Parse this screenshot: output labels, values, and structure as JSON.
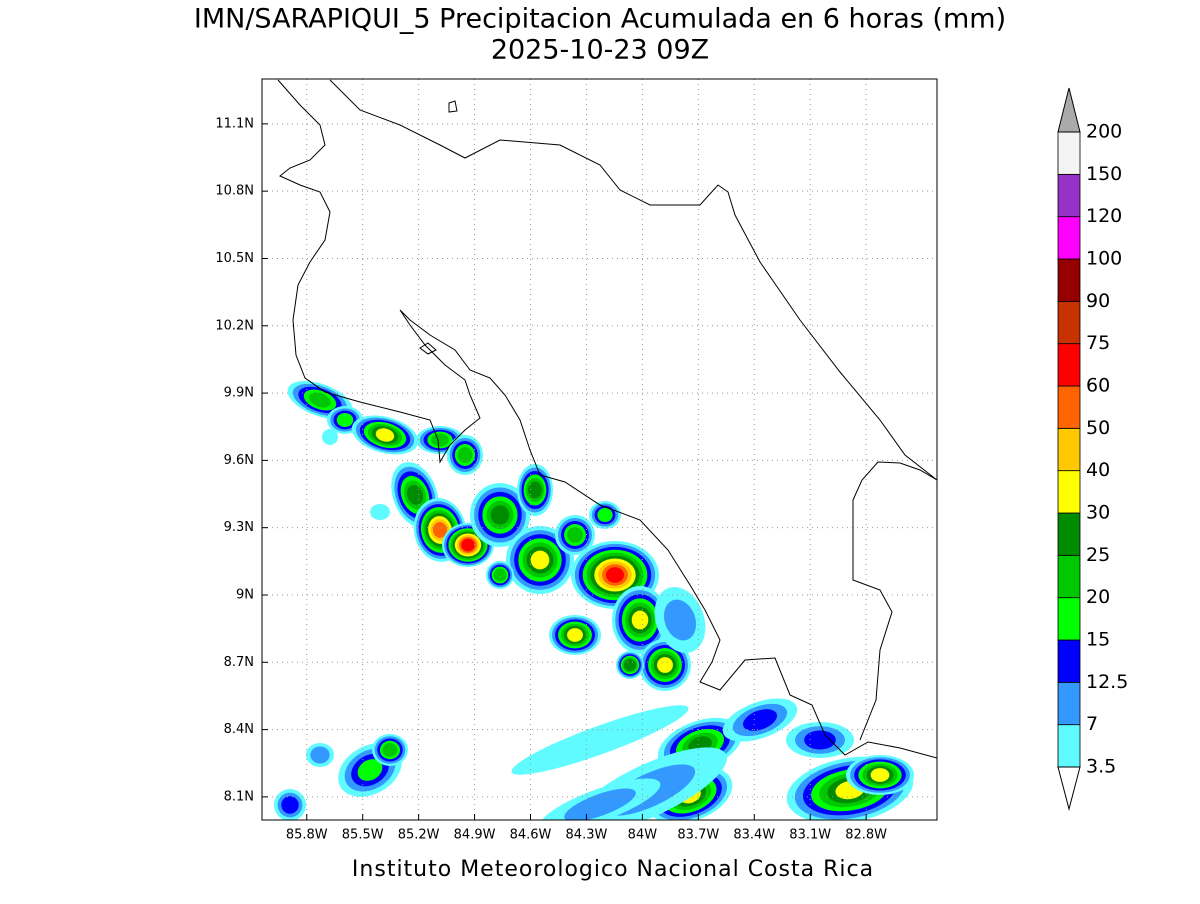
{
  "map": {
    "title": "IMN/SARAPIQUI_5 Precipitacion Acumulada en 6 horas (mm)",
    "subtitle": "2025-10-23 09Z",
    "credit": "Instituto Meteorologico Nacional Costa Rica",
    "lon_range": [
      -86.04,
      -82.42
    ],
    "lat_range": [
      7.997,
      11.3
    ],
    "lon_ticks": [
      {
        "value": -85.8,
        "label": "85.8W"
      },
      {
        "value": -85.5,
        "label": "85.5W"
      },
      {
        "value": -85.2,
        "label": "85.2W"
      },
      {
        "value": -84.9,
        "label": "84.9W"
      },
      {
        "value": -84.6,
        "label": "84.6W"
      },
      {
        "value": -84.3,
        "label": "84.3W"
      },
      {
        "value": -84,
        "label": "84W"
      },
      {
        "value": -83.7,
        "label": "83.7W"
      },
      {
        "value": -83.4,
        "label": "83.4W"
      },
      {
        "value": -83.1,
        "label": "83.1W"
      },
      {
        "value": -82.8,
        "label": "82.8W"
      }
    ],
    "lat_ticks": [
      {
        "value": 8.1,
        "label": "8.1N"
      },
      {
        "value": 8.4,
        "label": "8.4N"
      },
      {
        "value": 8.7,
        "label": "8.7N"
      },
      {
        "value": 9,
        "label": "9N"
      },
      {
        "value": 9.3,
        "label": "9.3N"
      },
      {
        "value": 9.6,
        "label": "9.6N"
      },
      {
        "value": 9.9,
        "label": "9.9N"
      },
      {
        "value": 10.2,
        "label": "10.2N"
      },
      {
        "value": 10.5,
        "label": "10.5N"
      },
      {
        "value": 10.8,
        "label": "10.8N"
      },
      {
        "value": 11.1,
        "label": "11.1N"
      }
    ],
    "grid": true,
    "colorbar": {
      "levels": [
        3.5,
        7,
        12.5,
        15,
        20,
        25,
        30,
        40,
        50,
        60,
        75,
        90,
        100,
        120,
        150,
        200
      ],
      "colors": [
        "#60fbff",
        "#3399ff",
        "#0000ff",
        "#00ff00",
        "#00c800",
        "#008c00",
        "#ffff00",
        "#ffc800",
        "#ff6400",
        "#ff0000",
        "#c83200",
        "#960000",
        "#ff00ff",
        "#9632c8",
        "#f4f4f4"
      ],
      "under_color": "#ffffff",
      "over_color": "#aaaaaa"
    }
  }
}
